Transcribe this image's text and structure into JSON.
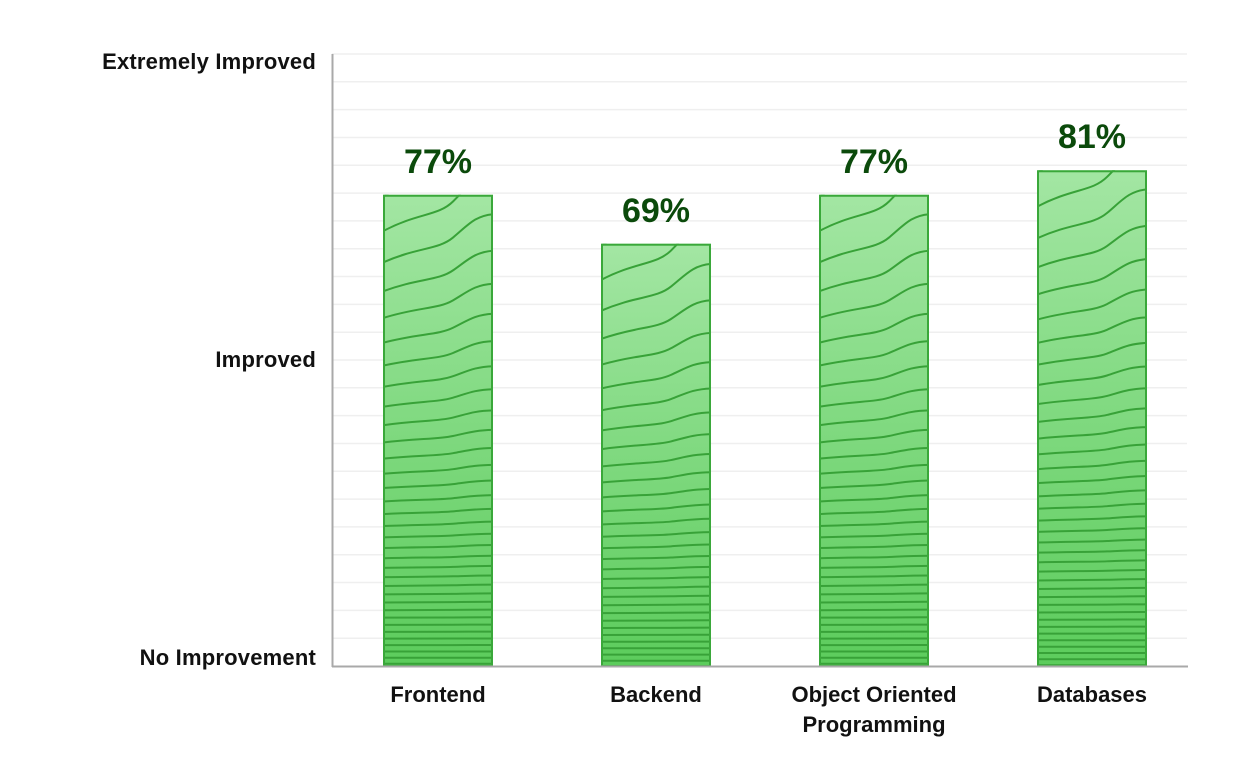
{
  "chart_data": {
    "type": "bar",
    "title": "",
    "xlabel": "",
    "ylabel": "",
    "categories": [
      "Frontend",
      "Backend",
      "Object Oriented Programming",
      "Databases"
    ],
    "category_lines": [
      [
        "Frontend"
      ],
      [
        "Backend"
      ],
      [
        "Object Oriented",
        "Programming"
      ],
      [
        "Databases"
      ]
    ],
    "values": [
      77,
      69,
      77,
      81
    ],
    "value_labels": [
      "77%",
      "69%",
      "77%",
      "81%"
    ],
    "ylim": [
      0,
      100
    ],
    "y_tick_labels": [
      {
        "value": 100,
        "label": "Extremely Improved"
      },
      {
        "value": 50,
        "label": "Improved"
      },
      {
        "value": 0,
        "label": "No Improvement"
      }
    ],
    "grid": true,
    "legend": null
  },
  "colors": {
    "bar_fill_top": "#a3e6a3",
    "bar_fill_bottom": "#5ccc5c",
    "bar_stroke": "#3aa83a",
    "contour": "#38a238",
    "value_label": "#0b4a0b",
    "axis": "#a9a9a9",
    "grid": "#efefef",
    "text": "#111111"
  }
}
